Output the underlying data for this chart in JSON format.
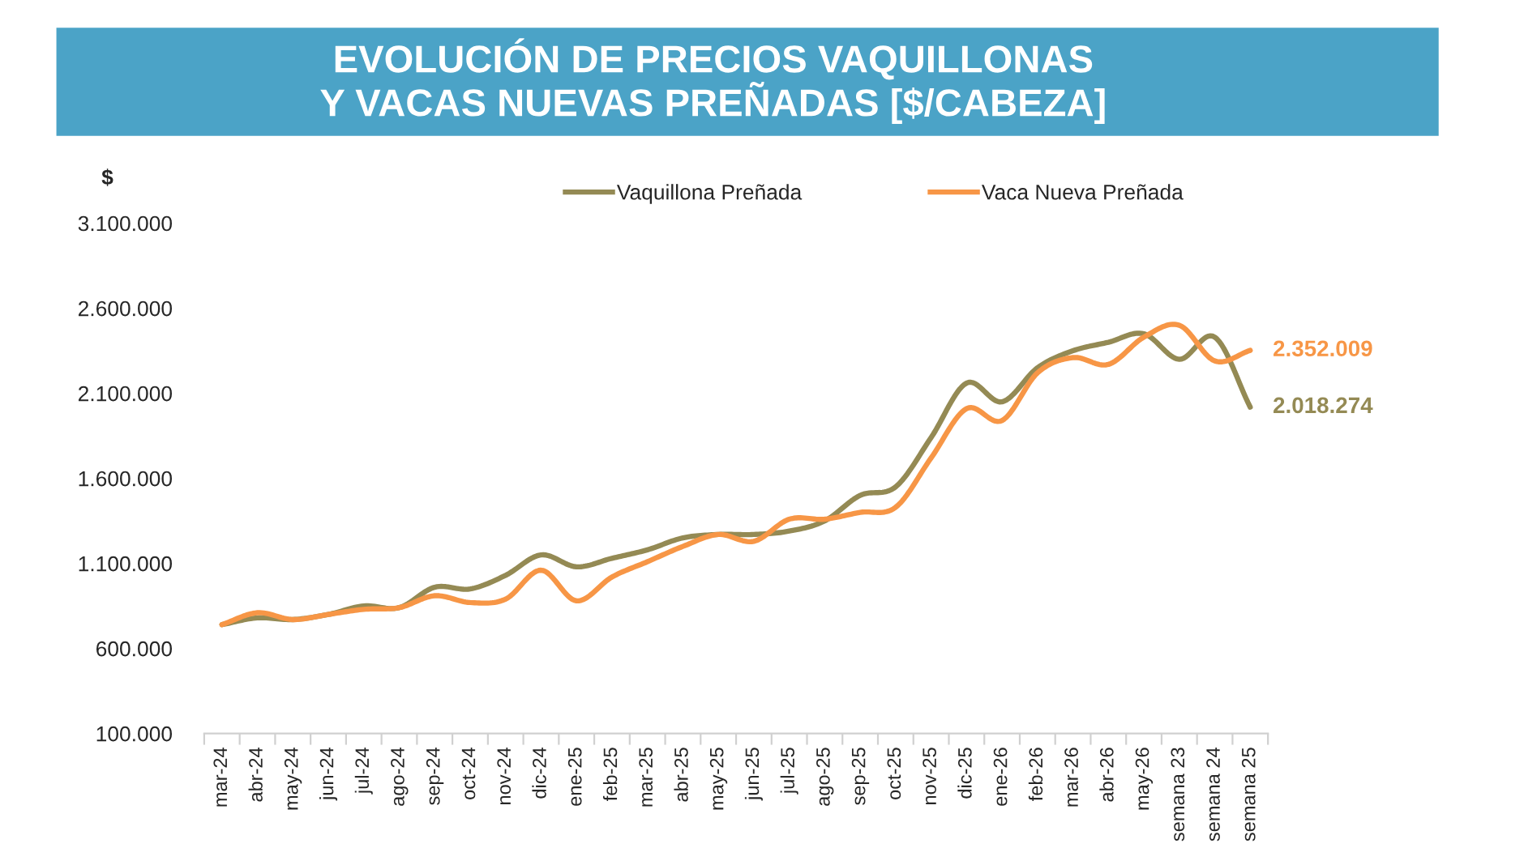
{
  "chart_data": {
    "type": "line",
    "title": "EVOLUCIÓN DE PRECIOS VAQUILLONAS\nY VACAS NUEVAS PREÑADAS [$/CABEZA]",
    "ylabel": "$",
    "categories": [
      "mar-24",
      "abr-24",
      "may-24",
      "jun-24",
      "jul-24",
      "ago-24",
      "sep-24",
      "oct-24",
      "nov-24",
      "dic-24",
      "ene-25",
      "feb-25",
      "mar-25",
      "abr-25",
      "may-25",
      "jun-25",
      "jul-25",
      "ago-25",
      "sep-25",
      "oct-25",
      "nov-25",
      "dic-25",
      "ene-26",
      "feb-26",
      "mar-26",
      "abr-26",
      "may-26",
      "semana 23",
      "semana 24",
      "semana 25"
    ],
    "series": [
      {
        "name": "Vaquillona Preñada",
        "color": "#948a54",
        "values": [
          740000,
          780000,
          770000,
          800000,
          850000,
          840000,
          960000,
          950000,
          1030000,
          1150000,
          1080000,
          1130000,
          1180000,
          1250000,
          1270000,
          1270000,
          1290000,
          1350000,
          1500000,
          1550000,
          1840000,
          2160000,
          2050000,
          2250000,
          2350000,
          2400000,
          2450000,
          2300000,
          2430000,
          2018274
        ],
        "value_labels": [
          null,
          null,
          null,
          null,
          null,
          null,
          null,
          null,
          null,
          null,
          null,
          null,
          null,
          null,
          null,
          null,
          null,
          null,
          null,
          null,
          null,
          null,
          null,
          null,
          null,
          null,
          null,
          null,
          null,
          "2.018.274"
        ]
      },
      {
        "name": "Vaca Nueva Preñada",
        "color": "#f79646",
        "values": [
          740000,
          810000,
          770000,
          800000,
          830000,
          840000,
          910000,
          870000,
          890000,
          1060000,
          880000,
          1020000,
          1110000,
          1200000,
          1270000,
          1230000,
          1360000,
          1360000,
          1400000,
          1430000,
          1720000,
          2010000,
          1940000,
          2220000,
          2310000,
          2270000,
          2430000,
          2500000,
          2290000,
          2352009
        ],
        "value_labels": [
          null,
          null,
          null,
          null,
          null,
          null,
          null,
          null,
          null,
          null,
          null,
          null,
          null,
          null,
          null,
          null,
          null,
          null,
          null,
          null,
          null,
          null,
          null,
          null,
          null,
          null,
          null,
          null,
          null,
          "2.352.009"
        ]
      }
    ],
    "ylim": [
      100000,
      3100000
    ],
    "yticks": [
      {
        "value": 100000,
        "label": "100.000"
      },
      {
        "value": 600000,
        "label": "600.000"
      },
      {
        "value": 1100000,
        "label": "1.100.000"
      },
      {
        "value": 1600000,
        "label": "1.600.000"
      },
      {
        "value": 2100000,
        "label": "2.100.000"
      },
      {
        "value": 2600000,
        "label": "2.600.000"
      },
      {
        "value": 3100000,
        "label": "3.100.000"
      }
    ],
    "grid": false,
    "legend": "top"
  }
}
